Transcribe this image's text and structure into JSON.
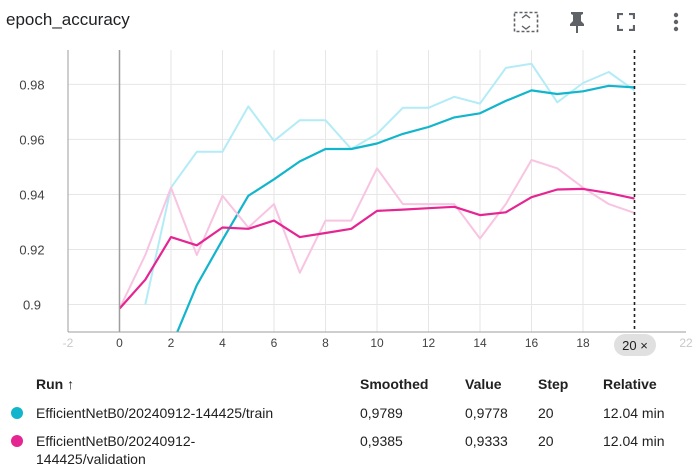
{
  "header": {
    "title": "epoch_accuracy",
    "tools": [
      {
        "name": "fit-domain-icon"
      },
      {
        "name": "pin-icon"
      },
      {
        "name": "fullscreen-icon"
      },
      {
        "name": "more-vert-icon"
      }
    ]
  },
  "chart_data": {
    "type": "line",
    "title": "epoch_accuracy",
    "xlabel": "",
    "ylabel": "",
    "xlim": [
      -2,
      22
    ],
    "ylim": [
      0.89,
      0.9925
    ],
    "x_ticks": [
      0,
      2,
      4,
      6,
      8,
      10,
      12,
      14,
      16,
      18
    ],
    "x_ticks_faint": [
      -2,
      22
    ],
    "y_ticks": [
      0.9,
      0.92,
      0.94,
      0.96,
      0.98
    ],
    "y_tick_labels": [
      "0.9",
      "0.92",
      "0.94",
      "0.96",
      "0.98"
    ],
    "cursor_step": 20,
    "cursor_label": "20 ×",
    "grid": true,
    "series": [
      {
        "name": "EfficientNetB0/20240912-144425/train",
        "kind": "raw",
        "color": "#b3ecf6",
        "x": [
          1,
          2,
          3,
          4,
          5,
          6,
          7,
          8,
          9,
          10,
          11,
          12,
          13,
          14,
          15,
          16,
          17,
          18,
          19,
          20
        ],
        "y": [
          0.9,
          0.9425,
          0.9555,
          0.9555,
          0.972,
          0.9595,
          0.967,
          0.967,
          0.9565,
          0.962,
          0.9715,
          0.9715,
          0.9755,
          0.973,
          0.986,
          0.9875,
          0.9735,
          0.9805,
          0.9845,
          0.9778
        ]
      },
      {
        "name": "EfficientNetB0/20240912-144425/train",
        "kind": "smoothed",
        "color": "#12b5cb",
        "x": [
          2,
          3,
          4,
          5,
          6,
          7,
          8,
          9,
          10,
          11,
          12,
          13,
          14,
          15,
          16,
          17,
          18,
          19,
          20
        ],
        "y": [
          0.8845,
          0.907,
          0.9235,
          0.9395,
          0.9455,
          0.952,
          0.9565,
          0.9565,
          0.9585,
          0.962,
          0.9645,
          0.968,
          0.9695,
          0.974,
          0.9778,
          0.9765,
          0.9775,
          0.9795,
          0.9789
        ]
      },
      {
        "name": "EfficientNetB0/20240912-144425/validation",
        "kind": "raw",
        "color": "#f8c4e2",
        "x": [
          0,
          1,
          2,
          3,
          4,
          5,
          6,
          7,
          8,
          9,
          10,
          11,
          12,
          13,
          14,
          15,
          16,
          17,
          18,
          19,
          20
        ],
        "y": [
          0.8985,
          0.918,
          0.9425,
          0.918,
          0.9395,
          0.928,
          0.9365,
          0.9115,
          0.9305,
          0.9305,
          0.9495,
          0.9365,
          0.9365,
          0.9365,
          0.924,
          0.9365,
          0.9525,
          0.9495,
          0.9425,
          0.9365,
          0.9333
        ]
      },
      {
        "name": "EfficientNetB0/20240912-144425/validation",
        "kind": "smoothed",
        "color": "#e52592",
        "x": [
          0,
          1,
          2,
          3,
          4,
          5,
          6,
          7,
          8,
          9,
          10,
          11,
          12,
          13,
          14,
          15,
          16,
          17,
          18,
          19,
          20
        ],
        "y": [
          0.8985,
          0.909,
          0.9245,
          0.9215,
          0.928,
          0.9275,
          0.9305,
          0.9245,
          0.926,
          0.9275,
          0.934,
          0.9345,
          0.935,
          0.9355,
          0.9325,
          0.9335,
          0.939,
          0.9418,
          0.942,
          0.9405,
          0.9385
        ]
      }
    ]
  },
  "table": {
    "headers": {
      "run": "Run ↑",
      "smoothed": "Smoothed",
      "value": "Value",
      "step": "Step",
      "relative": "Relative"
    },
    "rows": [
      {
        "color": "#12b5cb",
        "run_line1": "EfficientNetB0/20240912-144425/train",
        "run_line2": "",
        "smoothed": "0,9789",
        "value": "0,9778",
        "step": "20",
        "relative": "12.04 min"
      },
      {
        "color": "#e52592",
        "run_line1": "EfficientNetB0/20240912-",
        "run_line2": "144425/validation",
        "smoothed": "0,9385",
        "value": "0,9333",
        "step": "20",
        "relative": "12.04 min"
      }
    ]
  }
}
